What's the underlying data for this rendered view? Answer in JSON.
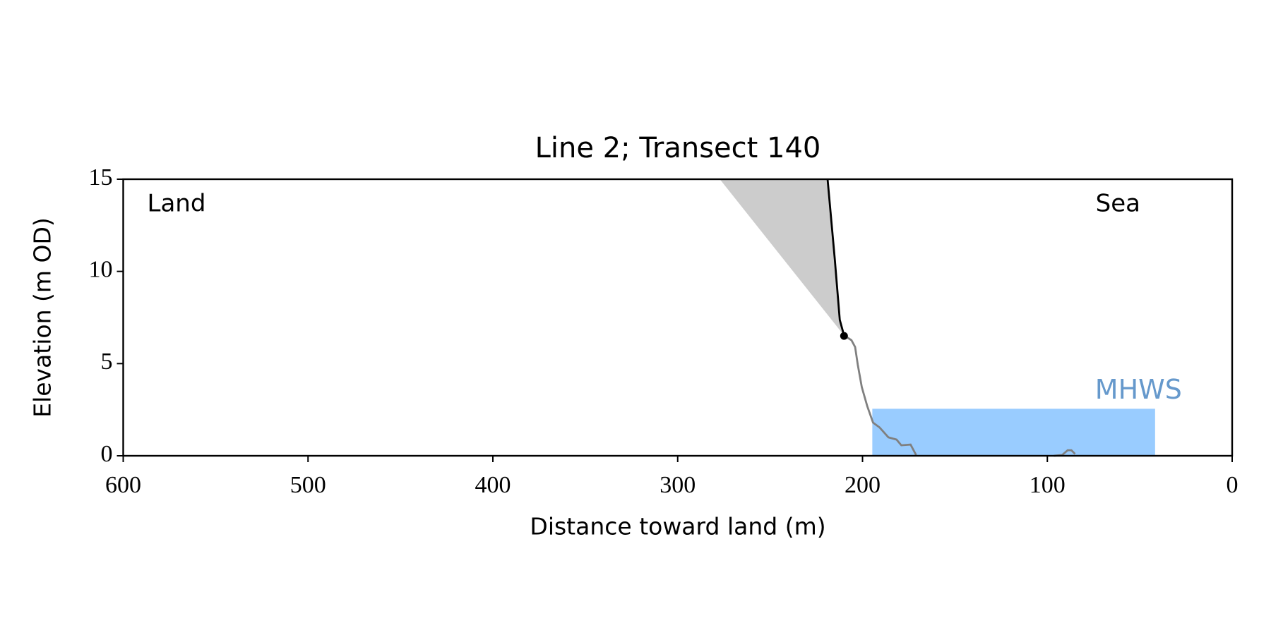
{
  "chart_data": {
    "type": "line",
    "title": "Line 2; Transect 140",
    "xlabel": "Distance toward land (m)",
    "ylabel": "Elevation (m OD)",
    "annotations": [
      "Land",
      "Sea"
    ],
    "xlim": [
      600,
      0
    ],
    "ylim": [
      0,
      15
    ],
    "xticks": [
      600,
      500,
      400,
      300,
      200,
      100,
      0
    ],
    "yticks": [
      0,
      5,
      10,
      15
    ],
    "series": [
      {
        "color": "#808080",
        "x": [
          210,
          206,
          204,
          202.6,
          200.4,
          197.4,
          194.3,
          190.8,
          186,
          181.6,
          179,
          174,
          171,
          100.9,
          96.5,
          92,
          89,
          87,
          85
        ],
        "values": [
          6.53,
          6.27,
          5.9,
          4.96,
          3.73,
          2.68,
          1.8,
          1.54,
          1.0,
          0.88,
          0.57,
          0.61,
          0.04,
          null,
          0.0,
          0.04,
          0.3,
          0.3,
          0.1
        ]
      },
      {
        "color": "#000000",
        "x": [
          218.9,
          215,
          212.3,
          210
        ],
        "values": [
          15,
          10.66,
          7.37,
          6.53
        ]
      }
    ],
    "point": {
      "x": 210,
      "y": 6.5,
      "color": "#000000"
    },
    "shaded_area": {
      "color": "#cccccc",
      "x": [
        277.2,
        218.9,
        215,
        212.3,
        210
      ],
      "y": [
        15,
        15,
        10.66,
        7.37,
        6.53
      ]
    },
    "band": {
      "label": "MHWS",
      "color": "#99ccff",
      "label_color": "#6699cc",
      "x": [
        194.7,
        41.7
      ],
      "y": [
        0,
        2.55
      ]
    }
  }
}
